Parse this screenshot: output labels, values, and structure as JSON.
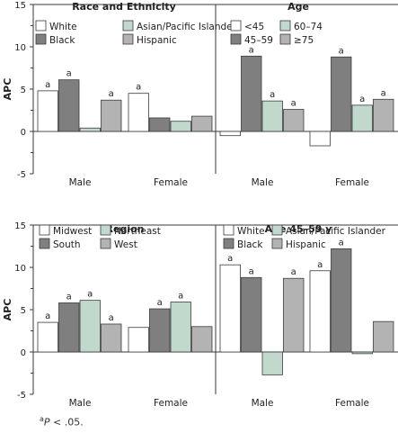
{
  "figure": {
    "ylabel": "APC",
    "footnote": {
      "sup": "a",
      "p": "P",
      "rest": " < .05."
    },
    "colors": {
      "white": "#ffffff",
      "dark": "#7f7f7f",
      "green": "#c0d9cc",
      "light": "#b3b3b3",
      "stroke": "#3a3a3a"
    }
  },
  "chart_data": [
    {
      "type": "bar",
      "row": 0,
      "panel": "Race and Ethnicity",
      "title": "Race and Ethnicity",
      "categories": [
        "Male",
        "Female"
      ],
      "series": [
        {
          "name": "White",
          "color": "#ffffff",
          "values": [
            4.8,
            4.5
          ],
          "sig": [
            true,
            true
          ]
        },
        {
          "name": "Black",
          "color": "#7f7f7f",
          "values": [
            6.1,
            1.6
          ],
          "sig": [
            true,
            false
          ]
        },
        {
          "name": "Asian/Pacific Islander",
          "color": "#c0d9cc",
          "values": [
            0.4,
            1.2
          ],
          "sig": [
            false,
            false
          ]
        },
        {
          "name": "Hispanic",
          "color": "#b3b3b3",
          "values": [
            3.7,
            1.8
          ],
          "sig": [
            true,
            false
          ]
        }
      ],
      "ylabel": "APC",
      "ylim": [
        -5,
        15
      ],
      "yticks": [
        "-5",
        "0",
        "5",
        "10",
        "15"
      ],
      "legend_position": "top"
    },
    {
      "type": "bar",
      "row": 0,
      "panel": "Age",
      "title": "Age",
      "categories": [
        "Male",
        "Female"
      ],
      "series": [
        {
          "name": "<45",
          "color": "#ffffff",
          "values": [
            -0.5,
            -1.7
          ],
          "sig": [
            false,
            false
          ]
        },
        {
          "name": "45–59",
          "color": "#7f7f7f",
          "values": [
            8.9,
            8.8
          ],
          "sig": [
            true,
            true
          ]
        },
        {
          "name": "60–74",
          "color": "#c0d9cc",
          "values": [
            3.6,
            3.1
          ],
          "sig": [
            true,
            true
          ]
        },
        {
          "name": "≥75",
          "color": "#b3b3b3",
          "values": [
            2.6,
            3.8
          ],
          "sig": [
            true,
            true
          ]
        }
      ],
      "ylim": [
        -5,
        15
      ],
      "legend_position": "top"
    },
    {
      "type": "bar",
      "row": 1,
      "panel": "Region",
      "title": "Region",
      "categories": [
        "Male",
        "Female"
      ],
      "series": [
        {
          "name": "Midwest",
          "color": "#ffffff",
          "values": [
            3.5,
            2.9
          ],
          "sig": [
            true,
            false
          ]
        },
        {
          "name": "South",
          "color": "#7f7f7f",
          "values": [
            5.8,
            5.1
          ],
          "sig": [
            true,
            true
          ]
        },
        {
          "name": "Northeast",
          "color": "#c0d9cc",
          "values": [
            6.1,
            5.9
          ],
          "sig": [
            true,
            true
          ]
        },
        {
          "name": "West",
          "color": "#b3b3b3",
          "values": [
            3.3,
            3.0
          ],
          "sig": [
            true,
            false
          ]
        }
      ],
      "ylabel": "APC",
      "ylim": [
        -5,
        15
      ],
      "yticks": [
        "-5",
        "0",
        "5",
        "10",
        "15"
      ],
      "legend_position": "top"
    },
    {
      "type": "bar",
      "row": 1,
      "panel": "Age 45–59 y",
      "title": "Age 45–59 y",
      "categories": [
        "Male",
        "Female"
      ],
      "series": [
        {
          "name": "White",
          "color": "#ffffff",
          "values": [
            10.3,
            9.6
          ],
          "sig": [
            true,
            true
          ]
        },
        {
          "name": "Black",
          "color": "#7f7f7f",
          "values": [
            8.8,
            12.2
          ],
          "sig": [
            true,
            true
          ]
        },
        {
          "name": "Asian/Pacific Islander",
          "color": "#c0d9cc",
          "values": [
            -2.7,
            -0.2
          ],
          "sig": [
            false,
            false
          ]
        },
        {
          "name": "Hispanic",
          "color": "#b3b3b3",
          "values": [
            8.7,
            3.6
          ],
          "sig": [
            true,
            false
          ]
        }
      ],
      "ylim": [
        -5,
        15
      ],
      "legend_position": "top"
    }
  ]
}
